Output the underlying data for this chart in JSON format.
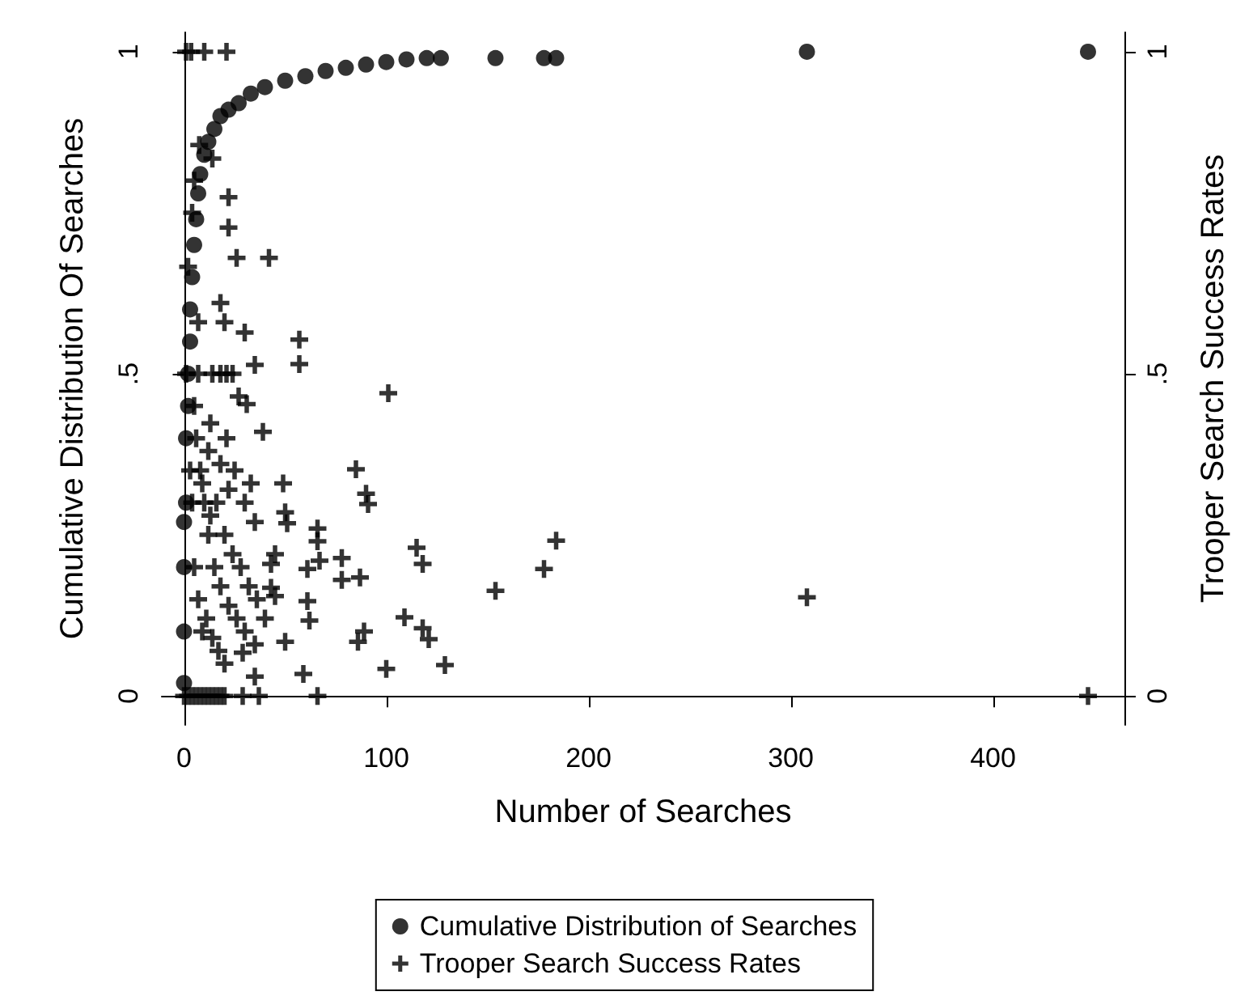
{
  "chart_data": {
    "type": "scatter",
    "xlabel": "Number of Searches",
    "ylabel": "Cumulative Distribution Of Searches",
    "y2label": "Trooper Search Success Rates",
    "xlim": [
      -11,
      465
    ],
    "xticks": [
      0,
      100,
      200,
      300,
      400
    ],
    "ylim": [
      -0.045,
      1.03
    ],
    "yticks": [
      0,
      {
        "value": 0.5,
        "label": ".5"
      },
      1
    ],
    "y2lim": [
      -0.045,
      1.03
    ],
    "y2ticks": [
      0,
      {
        "value": 0.5,
        "label": ".5"
      },
      1
    ],
    "grid": false,
    "legend": "bottom",
    "series": [
      {
        "name": "Cumulative Distribution of Searches",
        "color": "#000000",
        "marker": "circle",
        "x": [
          0,
          0,
          0,
          0,
          1,
          1,
          2,
          2,
          3,
          3,
          4,
          5,
          6,
          7,
          8,
          10,
          12,
          15,
          18,
          22,
          27,
          33,
          40,
          50,
          60,
          70,
          80,
          90,
          100,
          110,
          120,
          127,
          154,
          178,
          184,
          308,
          447
        ],
        "values": [
          0.02,
          0.1,
          0.2,
          0.27,
          0.3,
          0.4,
          0.45,
          0.5,
          0.55,
          0.6,
          0.65,
          0.7,
          0.74,
          0.78,
          0.81,
          0.84,
          0.86,
          0.88,
          0.9,
          0.91,
          0.92,
          0.935,
          0.945,
          0.955,
          0.962,
          0.97,
          0.975,
          0.98,
          0.984,
          0.988,
          0.99,
          0.99,
          0.99,
          0.99,
          0.99,
          1,
          1
        ]
      },
      {
        "name": "Trooper Search Success Rates",
        "color": "#000000",
        "marker": "cross",
        "axis": "y2",
        "x": [
          1,
          3.5,
          10,
          21,
          7.5,
          14,
          5,
          22,
          4,
          22,
          26,
          42,
          2,
          18,
          7,
          20,
          30,
          57,
          57,
          35,
          1,
          7,
          14,
          18,
          21,
          24,
          101,
          27,
          31,
          13,
          39,
          21,
          85,
          90,
          91,
          49,
          33,
          50,
          51,
          66,
          66,
          67,
          61,
          78,
          78,
          87,
          115,
          118,
          43,
          43,
          45,
          61,
          62,
          109,
          118,
          121,
          89,
          86,
          129,
          100,
          50,
          59,
          66,
          35,
          29,
          37,
          29,
          8,
          10,
          12,
          15,
          18,
          22,
          26,
          30,
          35,
          5,
          6,
          9,
          13,
          16,
          20,
          24,
          28,
          32,
          36,
          40,
          25,
          30,
          35,
          12,
          18,
          22,
          45,
          11,
          14,
          17,
          20,
          5,
          7,
          9,
          4,
          3,
          0,
          2,
          4,
          6,
          8,
          10,
          12,
          14,
          16,
          18,
          20,
          154,
          178,
          184,
          308,
          447
        ],
        "values": [
          1,
          1,
          1,
          1,
          0.855,
          0.834,
          0.8,
          0.774,
          0.75,
          0.727,
          0.68,
          0.68,
          0.666,
          0.61,
          0.58,
          0.58,
          0.564,
          0.553,
          0.515,
          0.514,
          0.5,
          0.5,
          0.5,
          0.5,
          0.5,
          0.5,
          0.47,
          0.465,
          0.453,
          0.423,
          0.41,
          0.4,
          0.352,
          0.314,
          0.298,
          0.33,
          0.33,
          0.285,
          0.268,
          0.26,
          0.24,
          0.21,
          0.197,
          0.214,
          0.18,
          0.184,
          0.23,
          0.205,
          0.205,
          0.168,
          0.155,
          0.147,
          0.117,
          0.122,
          0.105,
          0.088,
          0.1,
          0.084,
          0.048,
          0.042,
          0.084,
          0.034,
          0,
          0.03,
          0,
          0,
          0.067,
          0.35,
          0.3,
          0.25,
          0.2,
          0.17,
          0.14,
          0.12,
          0.1,
          0.08,
          0.45,
          0.4,
          0.33,
          0.28,
          0.3,
          0.25,
          0.22,
          0.2,
          0.17,
          0.15,
          0.12,
          0.35,
          0.3,
          0.27,
          0.38,
          0.36,
          0.32,
          0.22,
          0.12,
          0.09,
          0.07,
          0.05,
          0.2,
          0.15,
          0.1,
          0.3,
          0.35,
          0,
          0,
          0,
          0,
          0,
          0,
          0,
          0,
          0,
          0,
          0,
          0.163,
          0.197,
          0.241,
          0.153,
          0
        ]
      }
    ]
  }
}
